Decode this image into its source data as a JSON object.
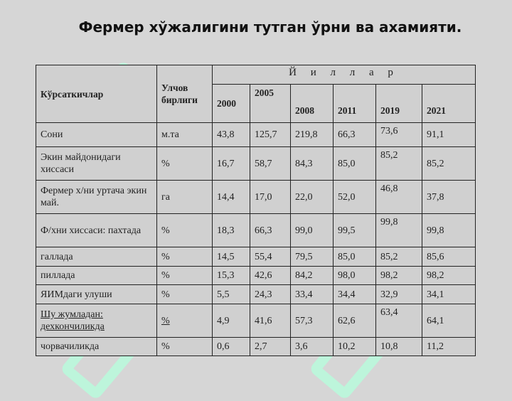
{
  "title": "Фермер хўжалигини тутган ўрни ва  ахамияти.",
  "table": {
    "col_indicator": "Кўрсаткичлар",
    "col_unit": "Улчов бирлиги",
    "years_label": "Й и л л а р",
    "years": [
      "2000",
      "2005",
      "2008",
      "2011",
      "2019",
      "2021"
    ],
    "rows": [
      {
        "label": "Сони",
        "unit": "м.та",
        "values": [
          "43,8",
          "125,7",
          "219,8",
          "66,3",
          "73,6",
          "91,1"
        ]
      },
      {
        "label": "Экин майдонидаги хиссаси",
        "unit": "%",
        "values": [
          "16,7",
          "58,7",
          "84,3",
          "85,0",
          "85,2",
          "85,2"
        ]
      },
      {
        "label": "Фермер х/ни уртача экин май.",
        "unit": "га",
        "values": [
          "14,4",
          "17,0",
          "22,0",
          "52,0",
          "46,8",
          "37,8"
        ]
      },
      {
        "label": "Ф/хни хиссаси: пахтада",
        "unit": "%",
        "values": [
          "18,3",
          "66,3",
          "99,0",
          "99,5",
          "99,8",
          "99,8"
        ]
      },
      {
        "label": "галлада",
        "unit": "%",
        "values": [
          "14,5",
          "55,4",
          "79,5",
          "85,0",
          "85,2",
          "85,6"
        ]
      },
      {
        "label": "пиллада",
        "unit": "%",
        "values": [
          "15,3",
          "42,6",
          "84,2",
          "98,0",
          "98,2",
          "98,2"
        ]
      },
      {
        "label": "ЯИМдаги  улуши",
        "unit": "%",
        "values": [
          "5,5",
          "24,3",
          "33,4",
          "34,4",
          "32,9",
          "34,1"
        ]
      },
      {
        "label": "Шу жумладан: дехкончиликда",
        "unit": "%",
        "values": [
          "4,9",
          "41,6",
          "57,3",
          "62,6",
          "63,4",
          "64,1"
        ]
      },
      {
        "label": "чорвачиликда",
        "unit": "%",
        "values": [
          "0,6",
          "2,7",
          "3,6",
          "10,2",
          "10,8",
          "11,2"
        ]
      }
    ]
  }
}
